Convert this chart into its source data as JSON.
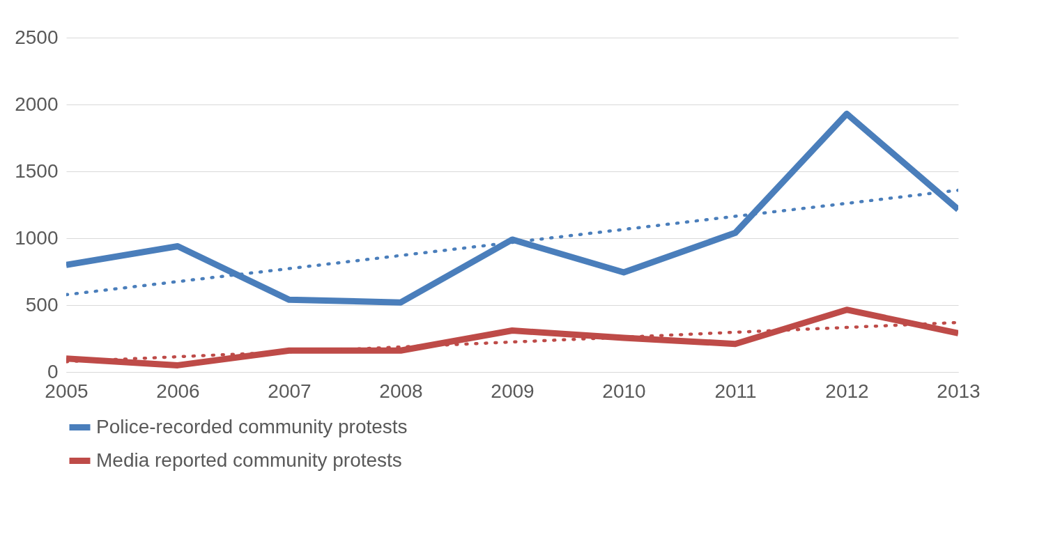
{
  "chart_data": {
    "type": "line",
    "x": [
      2005,
      2006,
      2007,
      2008,
      2009,
      2010,
      2011,
      2012,
      2013
    ],
    "series": [
      {
        "name": "Police-recorded community protests",
        "color": "#4a7ebb",
        "values": [
          800,
          940,
          540,
          520,
          990,
          745,
          1040,
          1930,
          1215
        ]
      },
      {
        "name": "Media reported community protests",
        "color": "#be4b48",
        "values": [
          100,
          50,
          160,
          160,
          310,
          255,
          210,
          465,
          290
        ]
      },
      {
        "type": "line",
        "color": "#4a7ebb",
        "line_style": "dotted",
        "values": [
          578,
          676,
          773,
          871,
          969,
          1066,
          1164,
          1261,
          1359
        ]
      },
      {
        "type": "line",
        "color": "#be4b48",
        "line_style": "dotted",
        "values": [
          77,
          114,
          150,
          187,
          224,
          260,
          297,
          333,
          370
        ]
      }
    ],
    "xlim": [
      2005,
      2013
    ],
    "xticks": [
      2005,
      2006,
      2007,
      2008,
      2009,
      2010,
      2011,
      2012,
      2013
    ],
    "ylim": [
      0,
      2500
    ],
    "yticks": [
      0,
      500,
      1000,
      1500,
      2000,
      2500
    ],
    "grid": "y",
    "legend": "bottom",
    "line_style": "solid",
    "marker": "none"
  }
}
